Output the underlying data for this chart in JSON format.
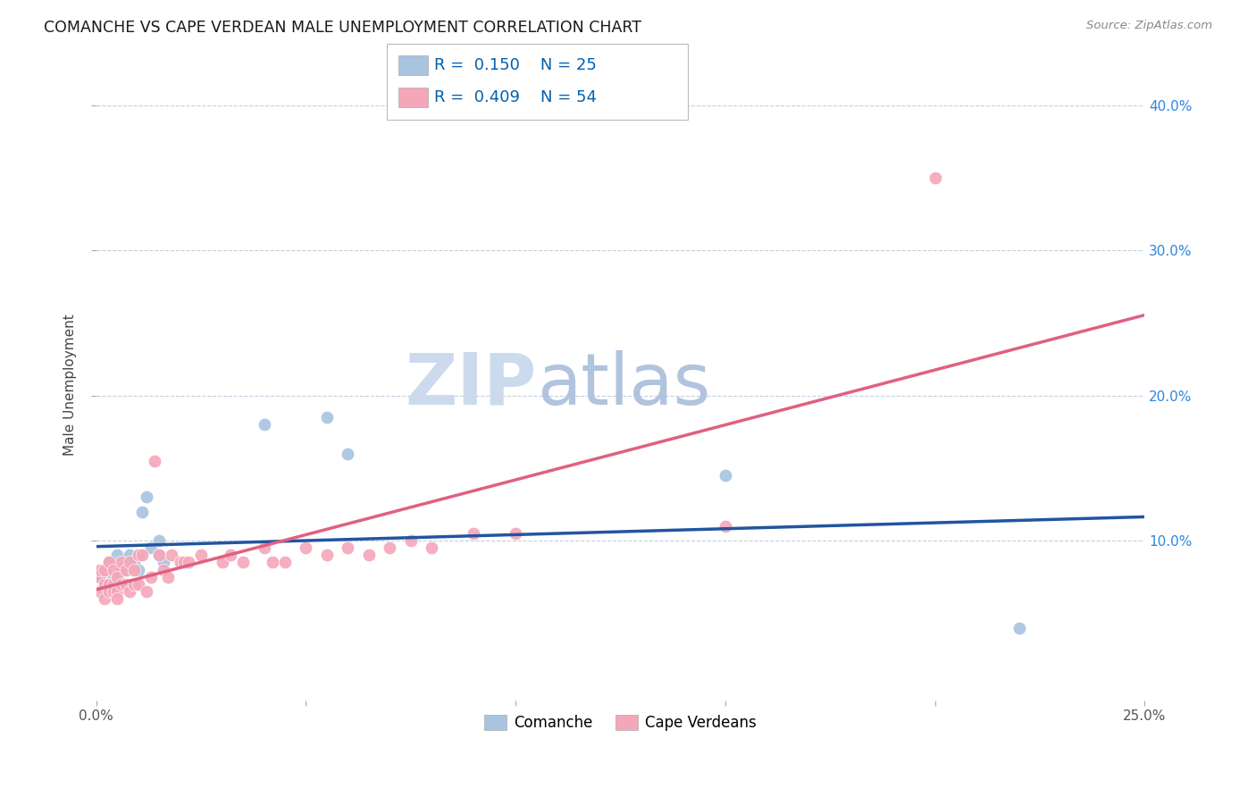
{
  "title": "COMANCHE VS CAPE VERDEAN MALE UNEMPLOYMENT CORRELATION CHART",
  "source": "Source: ZipAtlas.com",
  "ylabel": "Male Unemployment",
  "xlim": [
    0.0,
    0.25
  ],
  "ylim": [
    -0.01,
    0.425
  ],
  "xtick_labels": [
    "0.0%",
    "",
    "",
    "",
    "",
    "25.0%"
  ],
  "xtick_vals": [
    0.0,
    0.05,
    0.1,
    0.15,
    0.2,
    0.25
  ],
  "ytick_labels": [
    "10.0%",
    "20.0%",
    "30.0%",
    "40.0%"
  ],
  "ytick_vals": [
    0.1,
    0.2,
    0.3,
    0.4
  ],
  "comanche_color": "#a8c4e0",
  "cape_verdean_color": "#f4a7b9",
  "comanche_R": 0.15,
  "comanche_N": 25,
  "cape_verdean_R": 0.409,
  "cape_verdean_N": 54,
  "legend_color": "#0060b0",
  "comanche_line_color": "#2255a0",
  "cape_verdean_line_color": "#e06080",
  "watermark_zip": "ZIP",
  "watermark_atlas": "atlas",
  "watermark_color_zip": "#c8d8ee",
  "watermark_color_atlas": "#b8c8de",
  "comanche_x": [
    0.001,
    0.002,
    0.002,
    0.003,
    0.003,
    0.004,
    0.005,
    0.005,
    0.006,
    0.007,
    0.008,
    0.009,
    0.01,
    0.01,
    0.011,
    0.012,
    0.013,
    0.015,
    0.015,
    0.016,
    0.04,
    0.055,
    0.06,
    0.15,
    0.22
  ],
  "comanche_y": [
    0.075,
    0.065,
    0.08,
    0.07,
    0.085,
    0.075,
    0.075,
    0.09,
    0.08,
    0.085,
    0.09,
    0.085,
    0.09,
    0.08,
    0.12,
    0.13,
    0.095,
    0.09,
    0.1,
    0.085,
    0.18,
    0.185,
    0.16,
    0.145,
    0.04
  ],
  "cape_verdean_x": [
    0.001,
    0.001,
    0.001,
    0.002,
    0.002,
    0.002,
    0.003,
    0.003,
    0.003,
    0.004,
    0.004,
    0.004,
    0.005,
    0.005,
    0.005,
    0.006,
    0.006,
    0.007,
    0.007,
    0.008,
    0.008,
    0.009,
    0.009,
    0.01,
    0.01,
    0.011,
    0.012,
    0.013,
    0.014,
    0.015,
    0.016,
    0.017,
    0.018,
    0.02,
    0.021,
    0.022,
    0.025,
    0.03,
    0.032,
    0.035,
    0.04,
    0.042,
    0.045,
    0.05,
    0.055,
    0.06,
    0.065,
    0.07,
    0.075,
    0.08,
    0.09,
    0.1,
    0.15,
    0.2
  ],
  "cape_verdean_y": [
    0.065,
    0.075,
    0.08,
    0.07,
    0.08,
    0.06,
    0.085,
    0.07,
    0.065,
    0.08,
    0.07,
    0.065,
    0.075,
    0.065,
    0.06,
    0.085,
    0.07,
    0.08,
    0.07,
    0.085,
    0.065,
    0.08,
    0.07,
    0.09,
    0.07,
    0.09,
    0.065,
    0.075,
    0.155,
    0.09,
    0.08,
    0.075,
    0.09,
    0.085,
    0.085,
    0.085,
    0.09,
    0.085,
    0.09,
    0.085,
    0.095,
    0.085,
    0.085,
    0.095,
    0.09,
    0.095,
    0.09,
    0.095,
    0.1,
    0.095,
    0.105,
    0.105,
    0.11,
    0.35
  ]
}
